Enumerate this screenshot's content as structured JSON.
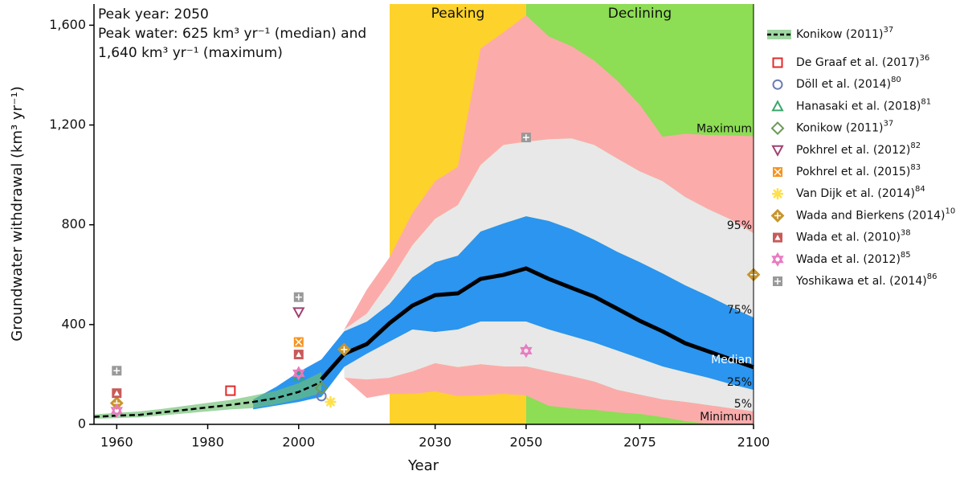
{
  "chart_data": {
    "type": "band-scatter",
    "annotations": [
      "Peak year: 2050",
      "Peak water: 625 km³ yr⁻¹ (median) and",
      "1,640 km³ yr⁻¹ (maximum)"
    ],
    "xlabel": "Year",
    "ylabel": "Groundwater withdrawal (km³ yr⁻¹)",
    "xlim": [
      1955,
      2100
    ],
    "ylim": [
      0,
      1685
    ],
    "xticks": [
      1960,
      1980,
      2000,
      2030,
      2050,
      2075,
      2100
    ],
    "yticks": [
      0,
      400,
      800,
      {
        "value": 1200,
        "label": "1,200"
      },
      {
        "value": 1600,
        "label": "1,600"
      }
    ],
    "phases": [
      {
        "name": "Peaking",
        "range": [
          2020,
          2050
        ],
        "color": "#fdd22a"
      },
      {
        "name": "Declining",
        "range": [
          2050,
          2100
        ],
        "color": "#8ddd55"
      }
    ],
    "x": [
      1990,
      1995,
      2000,
      2005,
      2010,
      2015,
      2020,
      2025,
      2030,
      2035,
      2040,
      2045,
      2050,
      2055,
      2060,
      2065,
      2070,
      2075,
      2080,
      2085,
      2090,
      2095,
      2100
    ],
    "bands": [
      {
        "name": "Maximum",
        "values": [
          null,
          null,
          null,
          null,
          380,
          541,
          670,
          847,
          975,
          1033,
          1507,
          1571,
          1640,
          1555,
          1516,
          1458,
          1378,
          1281,
          1153,
          1165,
          1160,
          1158,
          1155
        ]
      },
      {
        "name": "95%",
        "values": [
          null,
          null,
          null,
          null,
          380,
          444,
          573,
          718,
          824,
          879,
          1040,
          1120,
          1133,
          1143,
          1146,
          1120,
          1066,
          1014,
          975,
          911,
          863,
          821,
          766
        ]
      },
      {
        "name": "75%",
        "values": [
          100,
          150,
          210,
          260,
          373,
          412,
          483,
          589,
          650,
          676,
          773,
          805,
          834,
          815,
          782,
          740,
          692,
          650,
          605,
          557,
          515,
          470,
          428
        ]
      },
      {
        "name": "Median",
        "values": [
          null,
          null,
          null,
          180,
          283,
          322,
          406,
          476,
          518,
          525,
          583,
          599,
          625,
          583,
          547,
          512,
          464,
          415,
          373,
          325,
          293,
          261,
          229
        ]
      },
      {
        "name": "25%",
        "values": [
          60,
          75,
          90,
          110,
          230,
          283,
          332,
          380,
          370,
          380,
          412,
          412,
          412,
          380,
          354,
          328,
          296,
          264,
          232,
          209,
          187,
          161,
          138
        ]
      },
      {
        "name": "5%",
        "values": [
          null,
          null,
          null,
          null,
          187,
          180,
          187,
          212,
          245,
          229,
          241,
          232,
          232,
          212,
          193,
          171,
          138,
          119,
          100,
          90,
          77,
          64,
          52
        ]
      },
      {
        "name": "Minimum",
        "values": [
          null,
          null,
          null,
          null,
          187,
          106,
          122,
          122,
          132,
          113,
          116,
          122,
          116,
          74,
          64,
          58,
          48,
          42,
          29,
          13,
          3,
          0,
          0
        ]
      }
    ],
    "band_fills": [
      "#fcabab",
      "#e8e8e8",
      "#2b95f0",
      "#e8e8e8",
      "#fcabab"
    ],
    "median_color": "#000000",
    "konikow": {
      "name": "Konikow (2011)",
      "ref": "37",
      "color": "#6cc070",
      "x": [
        1955,
        1960,
        1965,
        1970,
        1975,
        1980,
        1985,
        1990,
        1995,
        2000,
        2005
      ],
      "values": [
        30,
        35,
        38,
        48,
        58,
        68,
        78,
        90,
        105,
        130,
        170
      ],
      "low": [
        22,
        25,
        28,
        36,
        44,
        52,
        60,
        65,
        80,
        100,
        125
      ],
      "high": [
        40,
        46,
        52,
        62,
        74,
        86,
        98,
        115,
        135,
        165,
        210
      ]
    },
    "series": [
      {
        "name": "De Graaf et al. (2017)",
        "ref": "36",
        "color": "#e32a2a",
        "marker": "square",
        "x": [
          1985
        ],
        "values": [
          135
        ]
      },
      {
        "name": "Döll et al. (2014)",
        "ref": "80",
        "color": "#6a7ab5",
        "marker": "circle",
        "x": [
          2005
        ],
        "values": [
          113
        ]
      },
      {
        "name": "Hanasaki et al. (2018)",
        "ref": "81",
        "color": "#3aa66a",
        "marker": "triangle",
        "x": [
          2000
        ],
        "values": [
          195
        ]
      },
      {
        "name": "Konikow (2011)",
        "ref": "37",
        "color": "#6a9a55",
        "marker": "diamond",
        "x": [
          2005
        ],
        "values": [
          145
        ]
      },
      {
        "name": "Pokhrel et al. (2012)",
        "ref": "82",
        "color": "#a04070",
        "marker": "triangle-down",
        "x": [
          2000
        ],
        "values": [
          450
        ]
      },
      {
        "name": "Pokhrel et al. (2015)",
        "ref": "83",
        "color": "#f7931e",
        "marker": "square-x",
        "x": [
          2000
        ],
        "values": [
          330
        ]
      },
      {
        "name": "Van Dijk et al. (2014)",
        "ref": "84",
        "color": "#ffe04a",
        "marker": "star",
        "x": [
          2007
        ],
        "values": [
          90
        ]
      },
      {
        "name": "Wada and Bierkens (2014)",
        "ref": "10",
        "color": "#c8952a",
        "marker": "diamond-plus",
        "x": [
          1960,
          2010,
          2100
        ],
        "values": [
          85,
          300,
          600
        ]
      },
      {
        "name": "Wada et al. (2010)",
        "ref": "38",
        "color": "#c95a5a",
        "marker": "square-triangle",
        "x": [
          1960,
          2000
        ],
        "values": [
          125,
          280
        ]
      },
      {
        "name": "Wada et al. (2012)",
        "ref": "85",
        "color": "#e87ac0",
        "marker": "hexagram",
        "x": [
          1960,
          2000,
          2050
        ],
        "values": [
          55,
          205,
          295
        ]
      },
      {
        "name": "Yoshikawa et al. (2014)",
        "ref": "86",
        "color": "#999999",
        "marker": "square-plus",
        "x": [
          1960,
          2000,
          2050
        ],
        "values": [
          215,
          510,
          1150
        ]
      }
    ]
  }
}
